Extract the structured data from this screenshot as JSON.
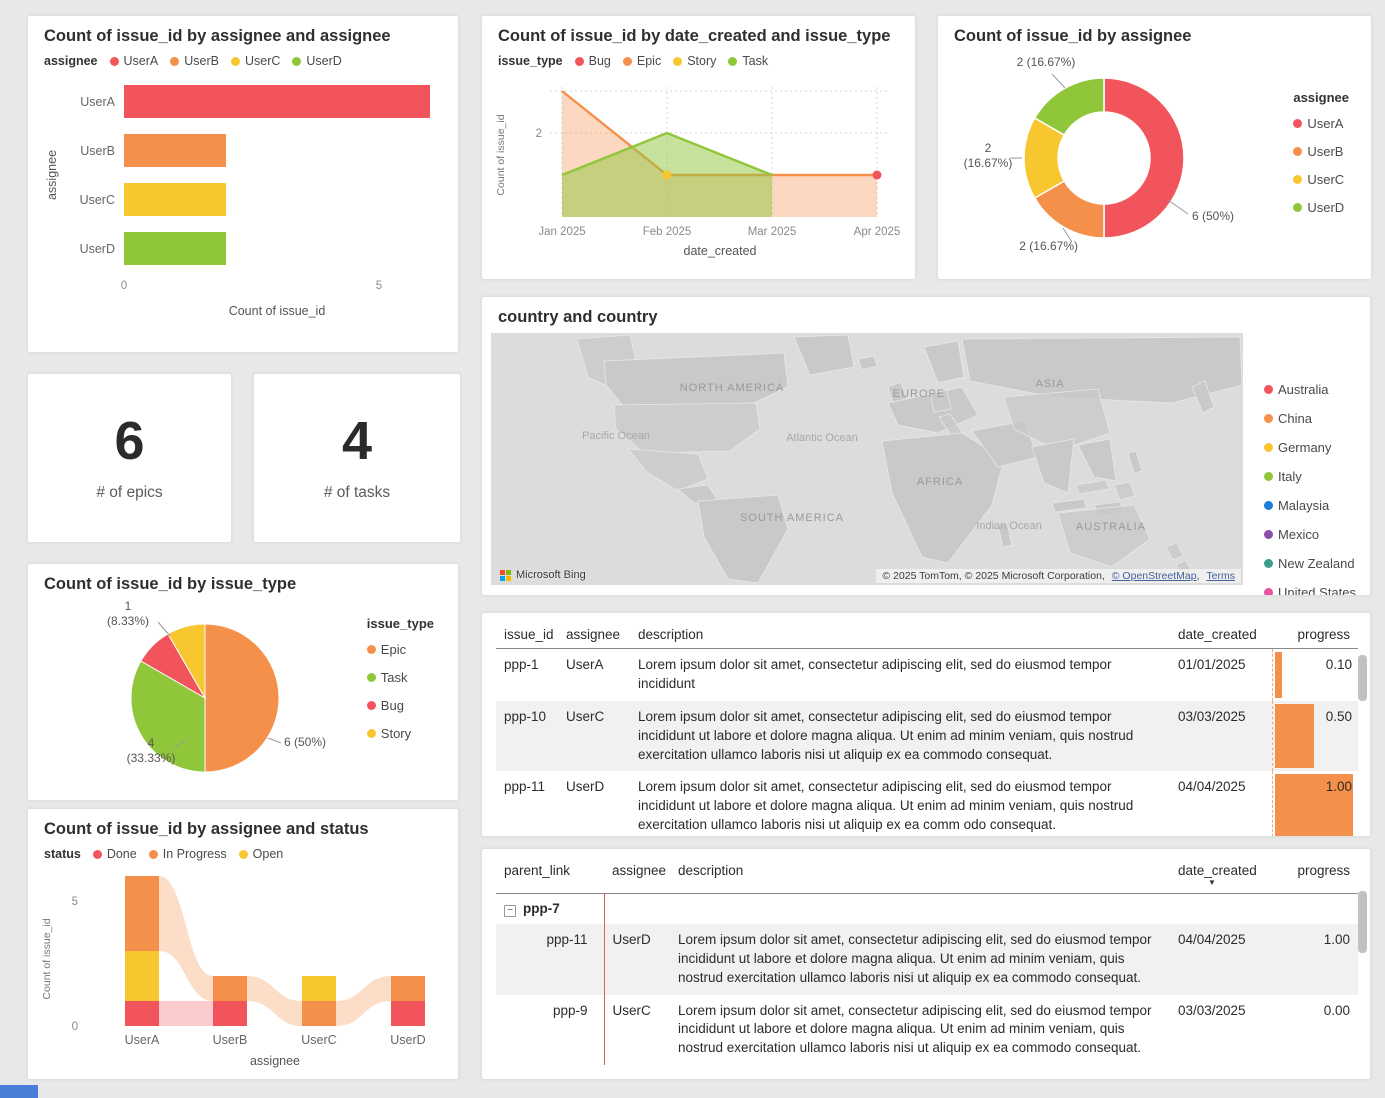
{
  "chart_data": [
    {
      "type": "bar",
      "orientation": "horizontal",
      "title": "Count of issue_id by assignee and assignee",
      "legend_title": "assignee",
      "legend_position": "top",
      "categories": [
        "UserA",
        "UserB",
        "UserC",
        "UserD"
      ],
      "values": [
        6,
        2,
        2,
        2
      ],
      "colors": [
        "#f2545b",
        "#f5904a",
        "#f8c62e",
        "#90c639"
      ],
      "xlabel": "Count of issue_id",
      "ylabel": "assignee",
      "xticks": [
        0,
        5
      ],
      "xlim": [
        0,
        6.3
      ]
    },
    {
      "type": "area",
      "title": "Count of issue_id by date_created and issue_type",
      "legend_title": "issue_type",
      "legend_position": "top",
      "x": [
        "Jan 2025",
        "Feb 2025",
        "Mar 2025",
        "Apr 2025"
      ],
      "series": [
        {
          "name": "Bug",
          "color": "#f2545b",
          "values": [
            null,
            null,
            null,
            1
          ]
        },
        {
          "name": "Epic",
          "color": "#f5904a",
          "values": [
            3,
            1,
            1,
            1
          ]
        },
        {
          "name": "Story",
          "color": "#f8c62e",
          "values": [
            null,
            1,
            null,
            null
          ]
        },
        {
          "name": "Task",
          "color": "#90c639",
          "values": [
            1,
            2,
            1,
            null
          ]
        }
      ],
      "xlabel": "date_created",
      "ylabel": "Count of issue_id",
      "yticks": [
        2
      ],
      "ylim": [
        0,
        3
      ],
      "grid": true
    },
    {
      "type": "donut",
      "title": "Count of issue_id by assignee",
      "legend_title": "assignee",
      "legend_position": "right",
      "slices": [
        {
          "label": "UserA",
          "value": 6,
          "color": "#f2545b",
          "callout": "6 (50%)"
        },
        {
          "label": "UserB",
          "value": 2,
          "color": "#f5904a",
          "callout": "2 (16.67%)"
        },
        {
          "label": "UserC",
          "value": 2,
          "color": "#f8c62e",
          "callout": "2\n(16.67%)"
        },
        {
          "label": "UserD",
          "value": 2,
          "color": "#90c639",
          "callout": "2 (16.67%)"
        }
      ]
    },
    {
      "type": "kpi",
      "value": "6",
      "label": "# of epics"
    },
    {
      "type": "kpi",
      "value": "4",
      "label": "# of tasks"
    },
    {
      "type": "map",
      "title": "country and country",
      "legend_position": "right",
      "legend": [
        {
          "label": "Australia",
          "color": "#f2545b"
        },
        {
          "label": "China",
          "color": "#f5904a"
        },
        {
          "label": "Germany",
          "color": "#f8c62e"
        },
        {
          "label": "Italy",
          "color": "#90c639"
        },
        {
          "label": "Malaysia",
          "color": "#1a80d9"
        },
        {
          "label": "Mexico",
          "color": "#8a4fa8"
        },
        {
          "label": "New Zealand",
          "color": "#3a9d8e"
        },
        {
          "label": "United States",
          "color": "#e653a3"
        }
      ],
      "labels": {
        "continents": [
          "NORTH AMERICA",
          "EUROPE",
          "ASIA",
          "AFRICA",
          "SOUTH AMERICA",
          "AUSTRALIA"
        ],
        "oceans": [
          "Pacific Ocean",
          "Atlantic Ocean",
          "Indian Ocean"
        ]
      },
      "attribution": {
        "prefix": "© 2025 TomTom, © 2025 Microsoft Corporation,",
        "osm": "© OpenStreetMap",
        "separator": ",",
        "terms": "Terms"
      },
      "brand": "Microsoft Bing"
    },
    {
      "type": "pie",
      "title": "Count of issue_id by issue_type",
      "legend_title": "issue_type",
      "legend_position": "right",
      "slices": [
        {
          "label": "Epic",
          "value": 6,
          "color": "#f5904a",
          "callout": "6 (50%)"
        },
        {
          "label": "Task",
          "value": 4,
          "color": "#90c639",
          "callout": "4\n(33.33%)"
        },
        {
          "label": "Bug",
          "value": 1,
          "color": "#f2545b",
          "callout": "1\n(8.33%)"
        },
        {
          "label": "Story",
          "value": 1,
          "color": "#f8c62e",
          "callout": null
        }
      ]
    },
    {
      "type": "ribbon",
      "title": "Count of issue_id by assignee and status",
      "legend_title": "status",
      "legend_position": "top",
      "legend": [
        {
          "label": "Done",
          "color": "#f2545b"
        },
        {
          "label": "In Progress",
          "color": "#f5904a"
        },
        {
          "label": "Open",
          "color": "#f8c62e"
        }
      ],
      "xlabel": "assignee",
      "ylabel": "Count of issue_id",
      "yticks": [
        0,
        5
      ],
      "columns": [
        {
          "category": "UserA",
          "segments": [
            {
              "name": "In Progress",
              "value": 3
            },
            {
              "name": "Open",
              "value": 2
            },
            {
              "name": "Done",
              "value": 1
            }
          ]
        },
        {
          "category": "UserB",
          "segments": [
            {
              "name": "In Progress",
              "value": 1
            },
            {
              "name": "Done",
              "value": 1
            }
          ]
        },
        {
          "category": "UserC",
          "segments": [
            {
              "name": "Open",
              "value": 1
            },
            {
              "name": "In Progress",
              "value": 1
            }
          ]
        },
        {
          "category": "UserD",
          "segments": [
            {
              "name": "In Progress",
              "value": 1
            },
            {
              "name": "Done",
              "value": 1
            }
          ]
        }
      ]
    },
    {
      "type": "table",
      "columns": [
        "issue_id",
        "assignee",
        "description",
        "date_created",
        "progress"
      ],
      "rows": [
        {
          "issue_id": "ppp-1",
          "assignee": "UserA",
          "description": "Lorem ipsum dolor sit amet, consectetur adipiscing elit, sed do eiusmod tempor incididunt",
          "date_created": "01/01/2025",
          "progress": "0.10"
        },
        {
          "issue_id": "ppp-10",
          "assignee": "UserC",
          "description": "Lorem ipsum dolor sit amet, consectetur adipiscing elit, sed do eiusmod tempor incididunt ut labore et dolore magna aliqua. Ut enim ad minim veniam, quis nostrud exercitation ullamco laboris nisi ut aliquip ex ea commodo consequat.",
          "date_created": "03/03/2025",
          "progress": "0.50"
        },
        {
          "issue_id": "ppp-11",
          "assignee": "UserD",
          "description": "Lorem ipsum dolor sit amet, consectetur adipiscing elit, sed do eiusmod tempor incididunt ut labore et dolore magna aliqua. Ut enim ad minim veniam, quis nostrud exercitation ullamco laboris nisi ut aliquip ex ea comm odo consequat.",
          "date_created": "04/04/2025",
          "progress": "1.00"
        }
      ]
    },
    {
      "type": "table",
      "matrix": true,
      "columns": [
        "parent_link",
        "assignee",
        "description",
        "date_created",
        "progress"
      ],
      "sorted_column": "date_created",
      "sort_icon": "▼",
      "collapse_glyph": "−",
      "groups": [
        {
          "key": "ppp-7",
          "expanded": true,
          "rows": [
            {
              "parent_link": "ppp-11",
              "assignee": "UserD",
              "description": "Lorem ipsum dolor sit amet, consectetur adipiscing elit, sed do eiusmod tempor incididunt ut labore et dolore magna aliqua. Ut enim ad minim veniam, quis nostrud exercitation ullamco laboris nisi ut aliquip ex ea commodo consequat.",
              "date_created": "04/04/2025",
              "progress": "1.00"
            },
            {
              "parent_link": "ppp-9",
              "assignee": "UserC",
              "description": "Lorem ipsum dolor sit amet, consectetur adipiscing elit, sed do eiusmod tempor incididunt ut labore et dolore magna aliqua. Ut enim ad minim veniam, quis nostrud exercitation ullamco laboris nisi ut aliquip ex ea commodo consequat.",
              "date_created": "03/03/2025",
              "progress": "0.00"
            }
          ]
        }
      ]
    }
  ]
}
